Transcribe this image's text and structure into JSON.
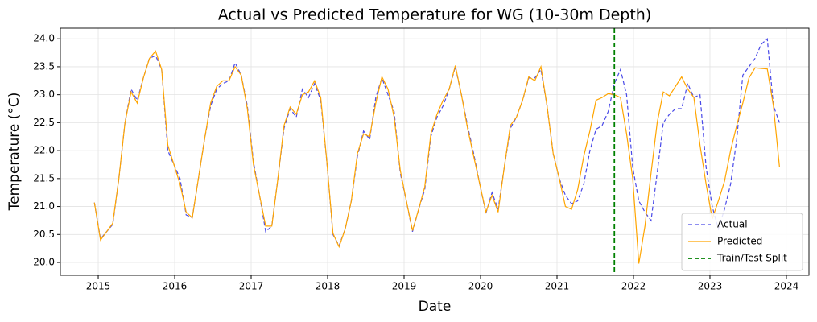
{
  "chart_data": {
    "type": "line",
    "title": "Actual vs Predicted Temperature for WG (10-30m Depth)",
    "xlabel": "Date",
    "ylabel": "Temperature (°C)",
    "x": [
      2014.95,
      2015.03,
      2015.11,
      2015.19,
      2015.27,
      2015.35,
      2015.43,
      2015.51,
      2015.59,
      2015.67,
      2015.75,
      2015.83,
      2015.91,
      2015.99,
      2016.07,
      2016.15,
      2016.23,
      2016.31,
      2016.39,
      2016.47,
      2016.55,
      2016.63,
      2016.71,
      2016.79,
      2016.87,
      2016.95,
      2017.03,
      2017.11,
      2017.19,
      2017.27,
      2017.35,
      2017.43,
      2017.51,
      2017.59,
      2017.67,
      2017.75,
      2017.83,
      2017.91,
      2017.99,
      2018.07,
      2018.15,
      2018.23,
      2018.31,
      2018.39,
      2018.47,
      2018.55,
      2018.63,
      2018.71,
      2018.79,
      2018.87,
      2018.95,
      2019.03,
      2019.11,
      2019.19,
      2019.27,
      2019.35,
      2019.43,
      2019.51,
      2019.59,
      2019.67,
      2019.75,
      2019.83,
      2019.91,
      2019.99,
      2020.07,
      2020.15,
      2020.23,
      2020.31,
      2020.39,
      2020.47,
      2020.55,
      2020.63,
      2020.71,
      2020.79,
      2020.87,
      2020.95,
      2021.03,
      2021.11,
      2021.19,
      2021.27,
      2021.35,
      2021.43,
      2021.51,
      2021.59,
      2021.67,
      2021.75,
      2021.83,
      2021.91,
      2021.99,
      2022.07,
      2022.15,
      2022.23,
      2022.31,
      2022.39,
      2022.47,
      2022.55,
      2022.63,
      2022.71,
      2022.79,
      2022.87,
      2022.95,
      2023.03,
      2023.11,
      2023.19,
      2023.27,
      2023.35,
      2023.43,
      2023.51,
      2023.59,
      2023.67,
      2023.75,
      2023.83,
      2023.91
    ],
    "series": [
      {
        "name": "Actual",
        "color": "#4a4ae8",
        "style": "dashed",
        "values": [
          21.07,
          20.42,
          20.55,
          20.68,
          21.5,
          22.5,
          23.1,
          22.9,
          23.3,
          23.65,
          23.7,
          23.45,
          22.0,
          21.75,
          21.5,
          20.85,
          20.8,
          21.5,
          22.2,
          22.8,
          23.1,
          23.2,
          23.25,
          23.57,
          23.35,
          22.8,
          21.8,
          21.2,
          20.55,
          20.65,
          21.5,
          22.4,
          22.75,
          22.6,
          23.1,
          22.95,
          23.2,
          22.9,
          21.8,
          20.5,
          20.3,
          20.6,
          21.1,
          21.9,
          22.35,
          22.2,
          22.95,
          23.3,
          23.0,
          22.7,
          21.6,
          21.1,
          20.55,
          20.95,
          21.3,
          22.25,
          22.6,
          22.8,
          23.1,
          23.5,
          23.0,
          22.45,
          21.95,
          21.4,
          20.88,
          21.25,
          20.95,
          21.7,
          22.4,
          22.6,
          22.9,
          23.3,
          23.3,
          23.45,
          22.8,
          21.95,
          21.5,
          21.2,
          21.05,
          21.1,
          21.4,
          22.0,
          22.38,
          22.45,
          22.7,
          23.2,
          23.45,
          23.0,
          21.7,
          21.1,
          20.9,
          20.75,
          21.6,
          22.5,
          22.65,
          22.75,
          22.75,
          23.2,
          22.95,
          23.0,
          21.7,
          21.0,
          20.6,
          20.95,
          21.4,
          22.2,
          23.35,
          23.5,
          23.65,
          23.9,
          24.0,
          22.8,
          22.5
        ]
      },
      {
        "name": "Predicted",
        "color": "#ffa500",
        "style": "solid",
        "values": [
          21.07,
          20.4,
          20.55,
          20.7,
          21.5,
          22.5,
          23.05,
          22.85,
          23.3,
          23.65,
          23.78,
          23.45,
          22.1,
          21.75,
          21.4,
          20.9,
          20.8,
          21.5,
          22.2,
          22.85,
          23.15,
          23.25,
          23.25,
          23.5,
          23.35,
          22.75,
          21.75,
          21.2,
          20.65,
          20.65,
          21.5,
          22.45,
          22.78,
          22.65,
          23.0,
          23.05,
          23.25,
          22.95,
          21.8,
          20.52,
          20.28,
          20.6,
          21.1,
          21.95,
          22.3,
          22.25,
          22.85,
          23.32,
          23.1,
          22.6,
          21.65,
          21.1,
          20.57,
          20.95,
          21.35,
          22.3,
          22.65,
          22.9,
          23.1,
          23.52,
          23.0,
          22.4,
          21.9,
          21.4,
          20.9,
          21.2,
          20.9,
          21.7,
          22.45,
          22.6,
          22.9,
          23.32,
          23.25,
          23.5,
          22.8,
          21.95,
          21.5,
          21.0,
          20.95,
          21.3,
          21.9,
          22.35,
          22.9,
          22.95,
          23.02,
          23.0,
          22.95,
          22.3,
          21.5,
          19.98,
          20.65,
          21.6,
          22.5,
          23.05,
          22.98,
          23.15,
          23.32,
          23.1,
          22.95,
          22.1,
          21.4,
          20.78,
          21.1,
          21.45,
          22.0,
          22.45,
          22.85,
          23.3,
          23.48,
          23.47,
          23.46,
          22.8,
          21.7
        ]
      }
    ],
    "vlines": [
      {
        "name": "Train/Test Split",
        "x": 2021.75,
        "color": "#008000",
        "style": "dashed"
      }
    ],
    "xlim": [
      2014.505,
      2024.295
    ],
    "ylim": [
      19.77,
      24.19
    ],
    "xticks": [
      2015,
      2016,
      2017,
      2018,
      2019,
      2020,
      2021,
      2022,
      2023,
      2024
    ],
    "yticks": [
      {
        "value": 20,
        "label": "20.0"
      },
      {
        "value": 20.5,
        "label": "20.5"
      },
      {
        "value": 21,
        "label": "21.0"
      },
      {
        "value": 21.5,
        "label": "21.5"
      },
      {
        "value": 22,
        "label": "22.0"
      },
      {
        "value": 22.5,
        "label": "22.5"
      },
      {
        "value": 23,
        "label": "23.0"
      },
      {
        "value": 23.5,
        "label": "23.5"
      },
      {
        "value": 24,
        "label": "24.0"
      }
    ],
    "grid": true,
    "legend": "lower right"
  }
}
